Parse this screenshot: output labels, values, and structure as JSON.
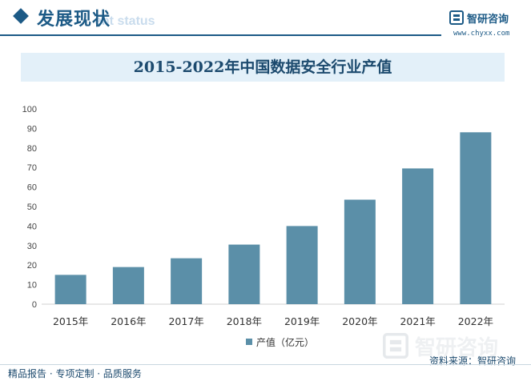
{
  "header": {
    "section_title": "发展现状",
    "section_subtitle": "ent status",
    "brand_name": "智研咨询",
    "brand_url": "www.chyxx.com"
  },
  "colors": {
    "accent": "#1c5a86",
    "bar": "#5b8fa8",
    "title_bg": "#e3f0f9"
  },
  "watermark_text": "智研咨询",
  "chart_data": {
    "type": "bar",
    "title": "2015-2022年中国数据安全行业产值",
    "categories": [
      "2015年",
      "2016年",
      "2017年",
      "2018年",
      "2019年",
      "2020年",
      "2021年",
      "2022年"
    ],
    "series": [
      {
        "name": "产值（亿元）",
        "values": [
          15,
          19,
          23.5,
          30.5,
          40,
          53.5,
          69.5,
          88
        ]
      }
    ],
    "ylim": [
      0,
      100
    ],
    "yticks": [
      0,
      10,
      20,
      30,
      40,
      50,
      60,
      70,
      80,
      90,
      100
    ],
    "grid": false,
    "legend_position": "bottom-center"
  },
  "footer": {
    "left_text": "精品报告 · 专项定制 · 品质服务",
    "source_text": "资料来源：智研咨询"
  }
}
